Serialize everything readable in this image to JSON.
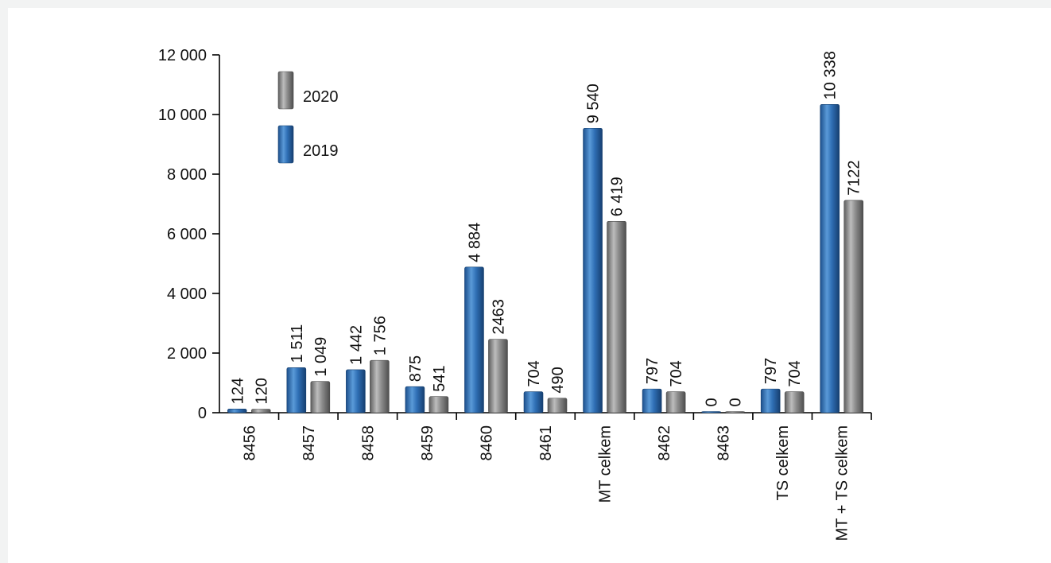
{
  "chart_data": {
    "type": "bar",
    "categories": [
      "8456",
      "8457",
      "8458",
      "8459",
      "8460",
      "8461",
      "MT celkem",
      "8462",
      "8463",
      "TS celkem",
      "MT + TS celkem"
    ],
    "series": [
      {
        "name": "2019",
        "color": "#2e6db4",
        "values": [
          124,
          1511,
          1442,
          875,
          4884,
          704,
          9540,
          797,
          0,
          797,
          10338
        ],
        "labels": [
          "124",
          "1 511",
          "1 442",
          "875",
          "4 884",
          "704",
          "9 540",
          "797",
          "0",
          "797",
          "10 338"
        ]
      },
      {
        "name": "2020",
        "color": "#8c8c8c",
        "values": [
          120,
          1049,
          1756,
          541,
          2463,
          490,
          6419,
          704,
          0,
          704,
          7122
        ],
        "labels": [
          "120",
          "1 049",
          "1 756",
          "541",
          "2463",
          "490",
          "6 419",
          "704",
          "0",
          "704",
          "7122"
        ]
      }
    ],
    "ylim": [
      0,
      12000
    ],
    "yticks": [
      0,
      2000,
      4000,
      6000,
      8000,
      10000,
      12000
    ],
    "ytick_labels": [
      "0",
      "2 000",
      "4 000",
      "6 000",
      "8 000",
      "10 000",
      "12 000"
    ],
    "legend": {
      "placement": "top-left",
      "entries": [
        "2020",
        "2019"
      ]
    },
    "grid": false,
    "xlabel": "",
    "ylabel": "",
    "title": ""
  }
}
